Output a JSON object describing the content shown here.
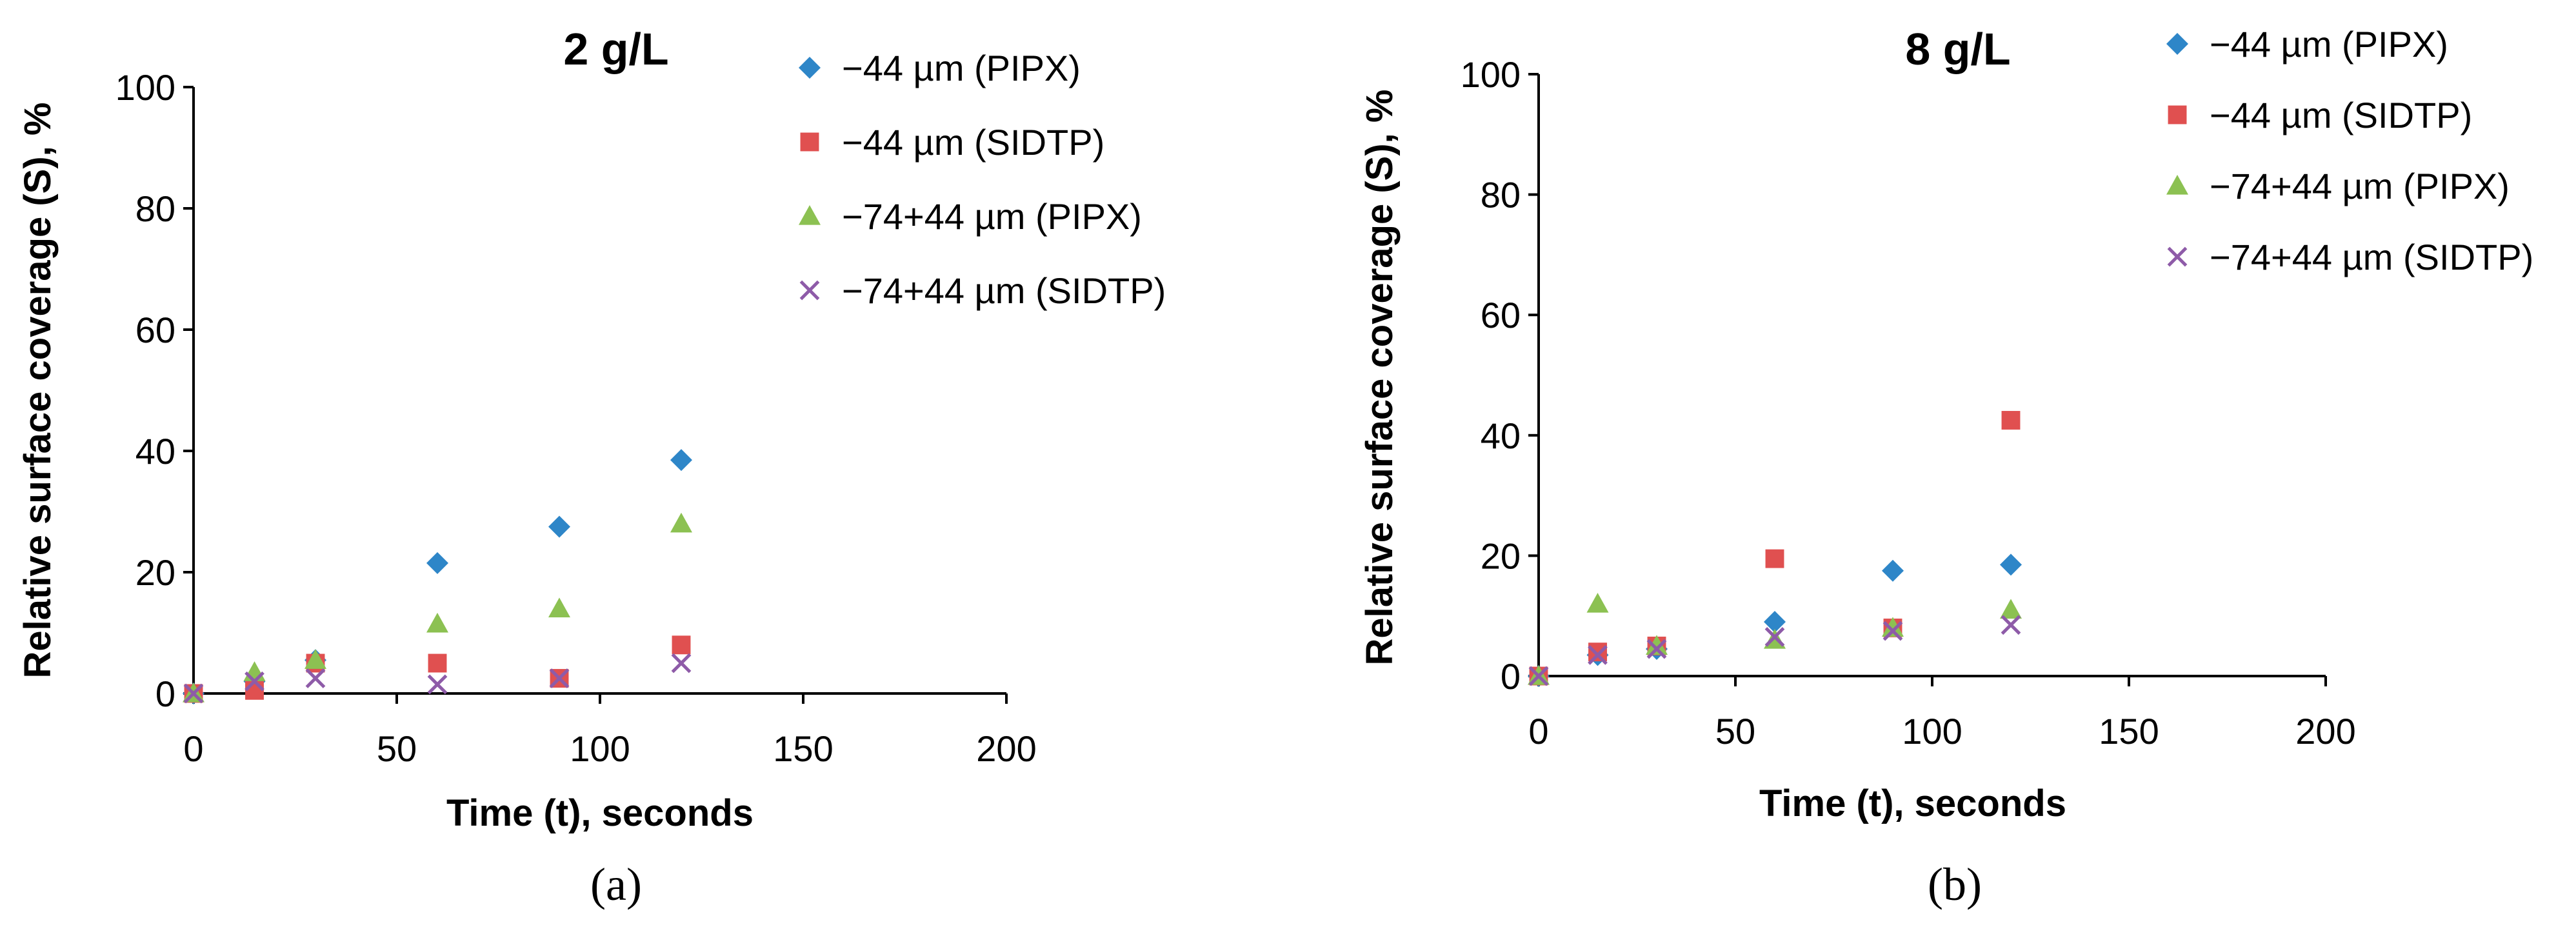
{
  "chart_data": [
    {
      "type": "scatter",
      "title": "2 g/L",
      "xlabel": "Time (t), seconds",
      "ylabel": "Relative surface coverage (S), %",
      "xlim": [
        0,
        200
      ],
      "ylim": [
        0,
        100
      ],
      "x_ticks": [
        "0",
        "50",
        "100",
        "150",
        "200"
      ],
      "y_ticks": [
        "0",
        "20",
        "40",
        "60",
        "80",
        "100"
      ],
      "panel_label": "(a)",
      "legend_position": "top-right",
      "series": [
        {
          "name": "−44 µm (PIPX)",
          "marker": "diamond",
          "color": "#2E86C8",
          "points": [
            [
              0,
              0
            ],
            [
              15,
              2
            ],
            [
              30,
              5.5
            ],
            [
              60,
              21.5
            ],
            [
              90,
              27.5
            ],
            [
              120,
              38.5
            ]
          ]
        },
        {
          "name": "−44 µm (SIDTP)",
          "marker": "square",
          "color": "#E05050",
          "points": [
            [
              0,
              0
            ],
            [
              15,
              0.5
            ],
            [
              30,
              5
            ],
            [
              60,
              5
            ],
            [
              90,
              2.5
            ],
            [
              120,
              8
            ]
          ]
        },
        {
          "name": "−74+44 µm (PIPX)",
          "marker": "triangle",
          "color": "#8CC152",
          "points": [
            [
              0,
              0
            ],
            [
              15,
              3.5
            ],
            [
              30,
              5.5
            ],
            [
              60,
              11.5
            ],
            [
              90,
              14
            ],
            [
              120,
              28
            ]
          ]
        },
        {
          "name": "−74+44 µm (SIDTP)",
          "marker": "x",
          "color": "#8E5BA8",
          "points": [
            [
              0,
              0
            ],
            [
              15,
              2
            ],
            [
              30,
              2.5
            ],
            [
              60,
              1.5
            ],
            [
              90,
              2.5
            ],
            [
              120,
              5
            ]
          ]
        }
      ]
    },
    {
      "type": "scatter",
      "title": "8 g/L",
      "xlabel": "Time (t), seconds",
      "ylabel": "Relative surface coverage (S), %",
      "xlim": [
        0,
        200
      ],
      "ylim": [
        0,
        100
      ],
      "x_ticks": [
        "0",
        "50",
        "100",
        "150",
        "200"
      ],
      "y_ticks": [
        "0",
        "20",
        "40",
        "60",
        "80",
        "100"
      ],
      "panel_label": "(b)",
      "legend_position": "top-right",
      "series": [
        {
          "name": "−44 µm (PIPX)",
          "marker": "diamond",
          "color": "#2E86C8",
          "points": [
            [
              0,
              0
            ],
            [
              15,
              3.5
            ],
            [
              30,
              4.5
            ],
            [
              60,
              9
            ],
            [
              90,
              17.5
            ],
            [
              120,
              18.5
            ]
          ]
        },
        {
          "name": "−44 µm (SIDTP)",
          "marker": "square",
          "color": "#E05050",
          "points": [
            [
              0,
              0
            ],
            [
              15,
              4
            ],
            [
              30,
              5
            ],
            [
              60,
              19.5
            ],
            [
              90,
              8
            ],
            [
              120,
              42.5
            ]
          ]
        },
        {
          "name": "−74+44 µm (PIPX)",
          "marker": "triangle",
          "color": "#8CC152",
          "points": [
            [
              0,
              0
            ],
            [
              15,
              12
            ],
            [
              30,
              5
            ],
            [
              60,
              6
            ],
            [
              90,
              8
            ],
            [
              120,
              11
            ]
          ]
        },
        {
          "name": "−74+44 µm (SIDTP)",
          "marker": "x",
          "color": "#8E5BA8",
          "points": [
            [
              0,
              0
            ],
            [
              15,
              3.5
            ],
            [
              30,
              4.5
            ],
            [
              60,
              6.5
            ],
            [
              90,
              7.5
            ],
            [
              120,
              8.5
            ]
          ]
        }
      ]
    }
  ]
}
